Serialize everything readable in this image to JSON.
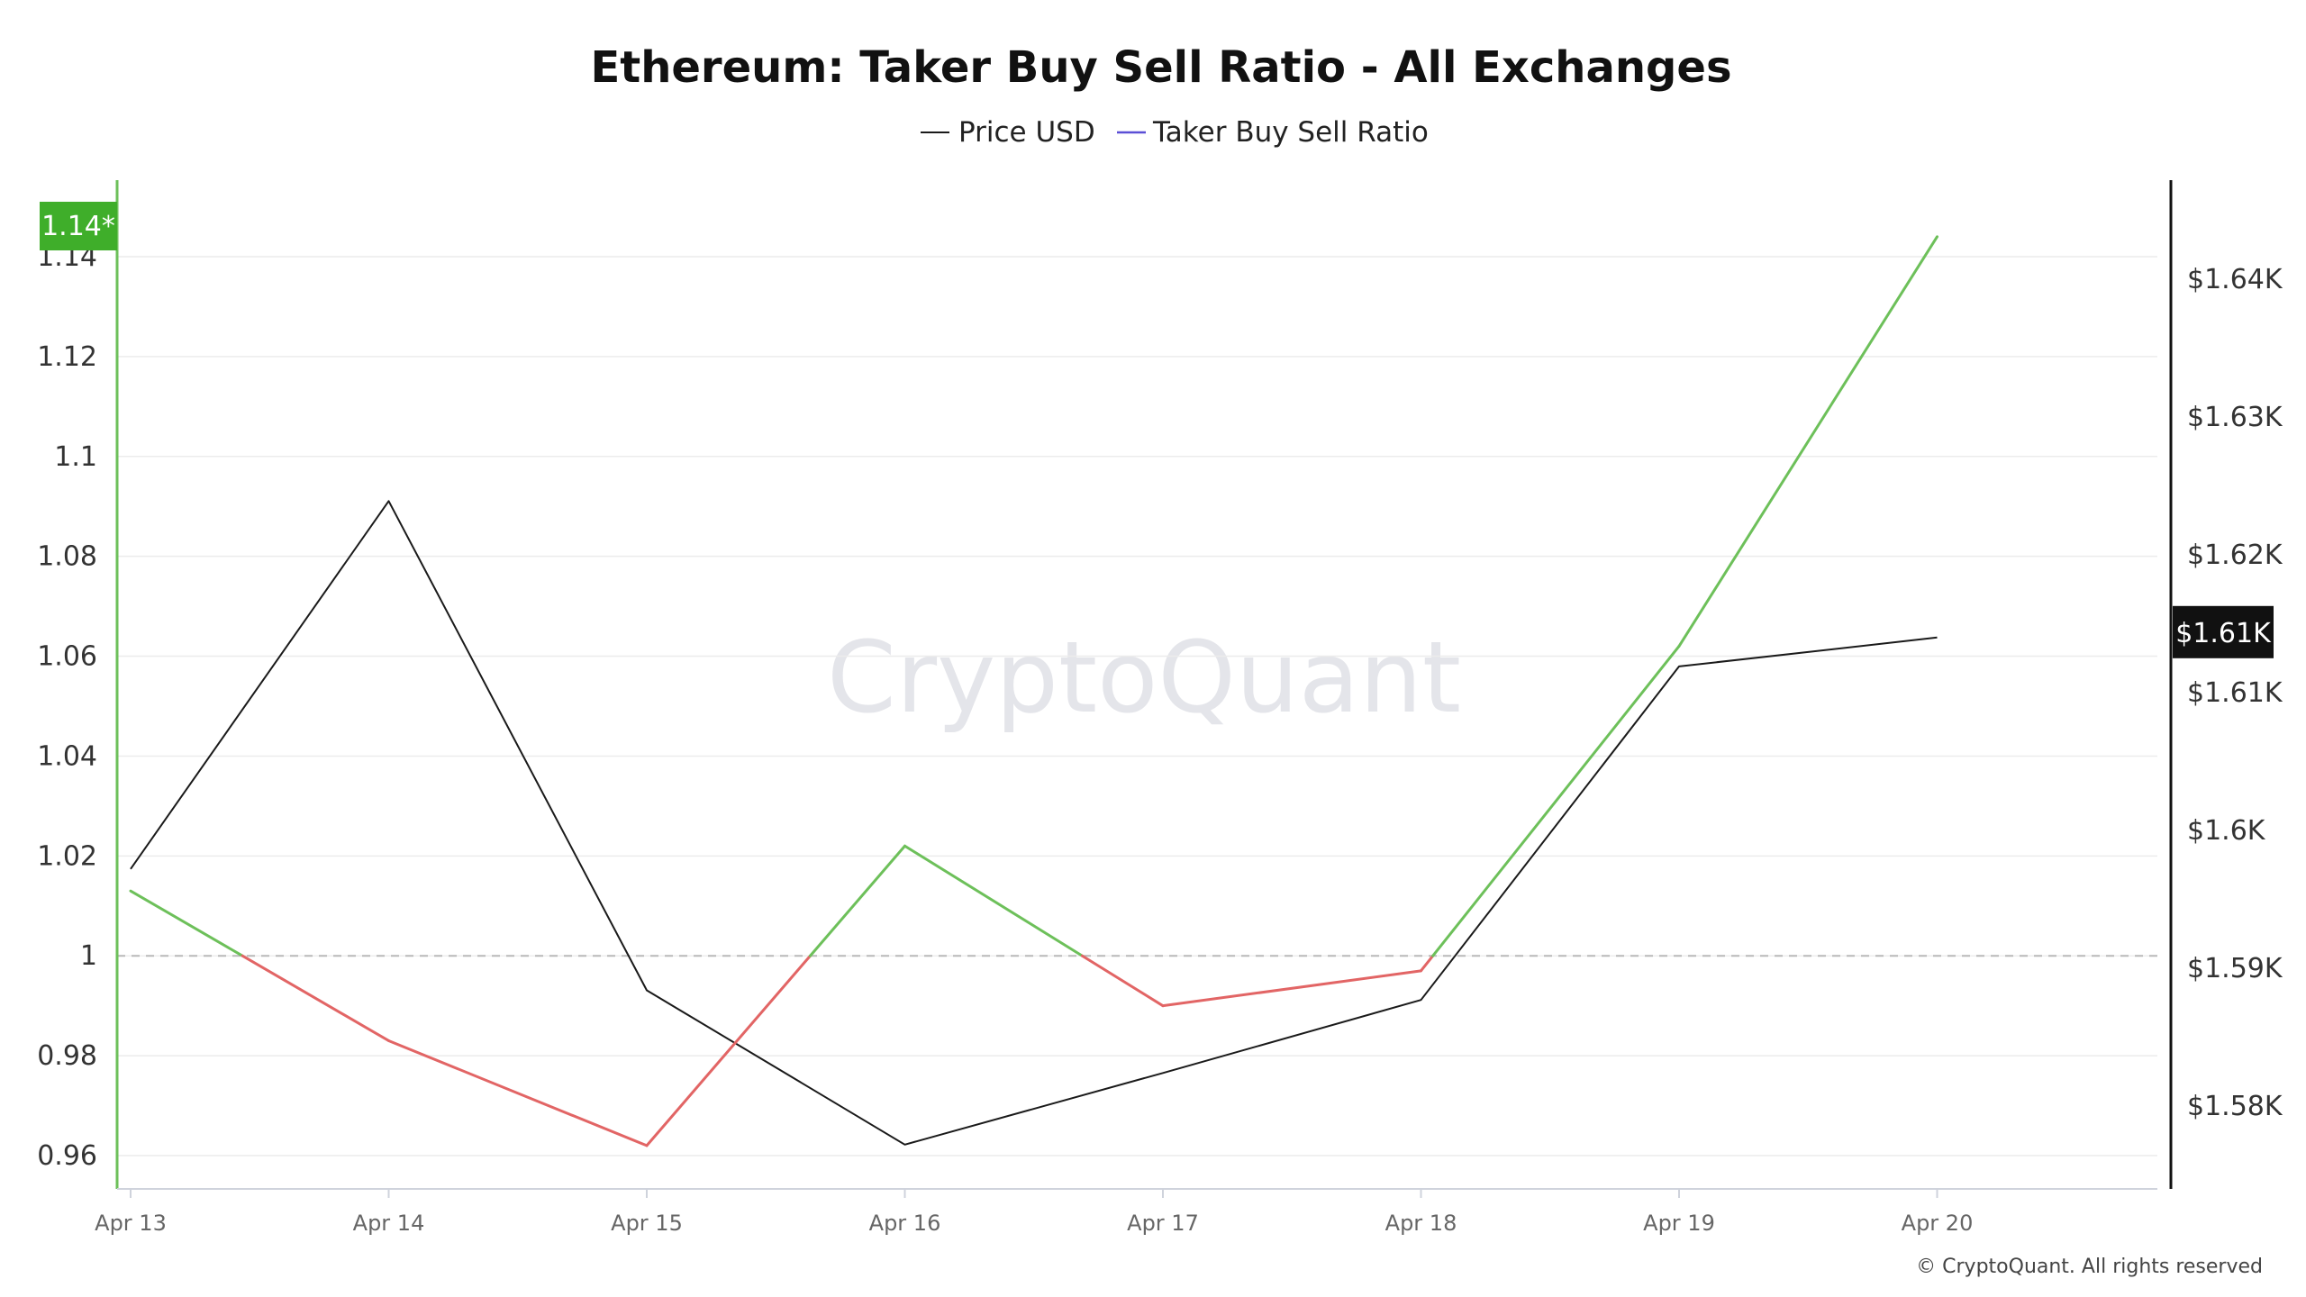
{
  "chart_data": {
    "type": "line",
    "title": "Ethereum: Taker Buy Sell Ratio - All Exchanges",
    "legend": [
      "Price USD",
      "Taker Buy Sell Ratio"
    ],
    "legend_placement": "top-center",
    "categories": [
      "Apr 13",
      "Apr 14",
      "Apr 15",
      "Apr 16",
      "Apr 17",
      "Apr 18",
      "Apr 19",
      "Apr 20"
    ],
    "series": [
      {
        "name": "Price USD",
        "axis": "right",
        "color": "#1a1a1a",
        "values": [
          1597.2,
          1623.9,
          1588.4,
          1577.2,
          1582.4,
          1587.7,
          1611.9,
          1614.0
        ]
      },
      {
        "name": "Taker Buy Sell Ratio",
        "axis": "left",
        "legend_color": "#5b4fd6",
        "color_above_1": "#6dc05a",
        "color_below_1": "#e26565",
        "values": [
          1.013,
          0.983,
          0.962,
          1.022,
          0.99,
          0.997,
          1.062,
          1.144
        ]
      }
    ],
    "y_left": {
      "ticks": [
        "0.96",
        "0.98",
        "1",
        "1.02",
        "1.04",
        "1.06",
        "1.08",
        "1.1",
        "1.12",
        "1.14"
      ],
      "reference_line": 1,
      "current_badge": "1.14*"
    },
    "y_right": {
      "ticks": [
        "$1.58K",
        "$1.59K",
        "$1.6K",
        "$1.61K",
        "$1.62K",
        "$1.63K",
        "$1.64K"
      ],
      "current_badge": "$1.61K"
    },
    "grid": true,
    "watermark": "CryptoQuant",
    "copyright": "© CryptoQuant. All rights reserved"
  }
}
